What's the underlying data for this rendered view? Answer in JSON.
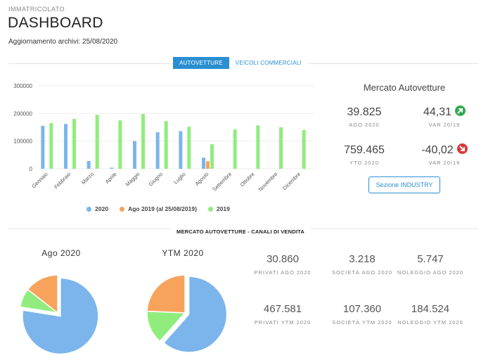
{
  "header": {
    "eyebrow": "IMMATRICOLATO",
    "title": "DASHBOARD",
    "updated": "Aggiornamento archivi: 25/08/2020"
  },
  "tabs": [
    {
      "label": "AUTOVETTURE",
      "active": true
    },
    {
      "label": "VEICOLI COMMERCIALI",
      "active": false
    }
  ],
  "colors": {
    "c2020": "#7cb5ec",
    "c2019partial": "#f7a35c",
    "c2019": "#90ed7d",
    "accent": "#2a8fd1",
    "up": "#32a852",
    "down": "#d73a3a"
  },
  "chart_data": [
    {
      "type": "bar",
      "categories": [
        "Gennaio",
        "Febbraio",
        "Marzo",
        "Aprile",
        "Maggio",
        "Giugno",
        "Luglio",
        "Agosto",
        "Settembre",
        "Ottobre",
        "Novembre",
        "Dicembre"
      ],
      "yticks": [
        0,
        100000,
        200000,
        300000
      ],
      "ylim": [
        0,
        300000
      ],
      "legend": "bottom",
      "series": [
        {
          "name": "2020",
          "values": [
            155000,
            162000,
            28000,
            4000,
            100000,
            132000,
            136000,
            40000,
            null,
            null,
            null,
            null
          ]
        },
        {
          "name": "Ago 2019 (al 25/08/2019)",
          "values": [
            null,
            null,
            null,
            null,
            null,
            null,
            null,
            27000,
            null,
            null,
            null,
            null
          ]
        },
        {
          "name": "2019",
          "values": [
            165000,
            180000,
            195000,
            175000,
            198000,
            172000,
            152000,
            89000,
            142000,
            157000,
            150000,
            140000
          ]
        }
      ]
    },
    {
      "type": "pie",
      "title": "Ago 2020",
      "slices": [
        {
          "label": "Privati",
          "value": 30860
        },
        {
          "label": "Società",
          "value": 3218
        },
        {
          "label": "Noleggio",
          "value": 5747
        }
      ]
    },
    {
      "type": "pie",
      "title": "YTM 2020",
      "slices": [
        {
          "label": "Privati",
          "value": 467581
        },
        {
          "label": "Società",
          "value": 107360
        },
        {
          "label": "Noleggio",
          "value": 184524
        }
      ]
    }
  ],
  "market": {
    "title": "Mercato Autovetture",
    "ago_value": "39.825",
    "ago_label": "AGO 2020",
    "var_value": "44,31",
    "var_label": "VAR 20/19",
    "ytd_value": "759.465",
    "ytd_label": "YTD 2020",
    "var2_value": "-40,02",
    "var2_label": "VAR 20/19",
    "industry_button": "Sezione INDUSTRY",
    "up_icon": "arrow-up-right-icon",
    "down_icon": "arrow-down-right-icon"
  },
  "channels": {
    "title": "MERCATO AUTOVETTURE - CANALI DI VENDITA",
    "pie1_title": "Ago 2020",
    "pie2_title": "YTM 2020",
    "stats": [
      {
        "value": "30.860",
        "label": "PRIVATI AGO 2020"
      },
      {
        "value": "3.218",
        "label": "SOCIETÀ AGO 2020"
      },
      {
        "value": "5.747",
        "label": "NOLEGGIO AGO 2020"
      },
      {
        "value": "467.581",
        "label": "PRIVATI YTM 2020"
      },
      {
        "value": "107.360",
        "label": "SOCIETÀ YTM 2020"
      },
      {
        "value": "184.524",
        "label": "NOLEGGIO YTM 2020"
      }
    ]
  }
}
